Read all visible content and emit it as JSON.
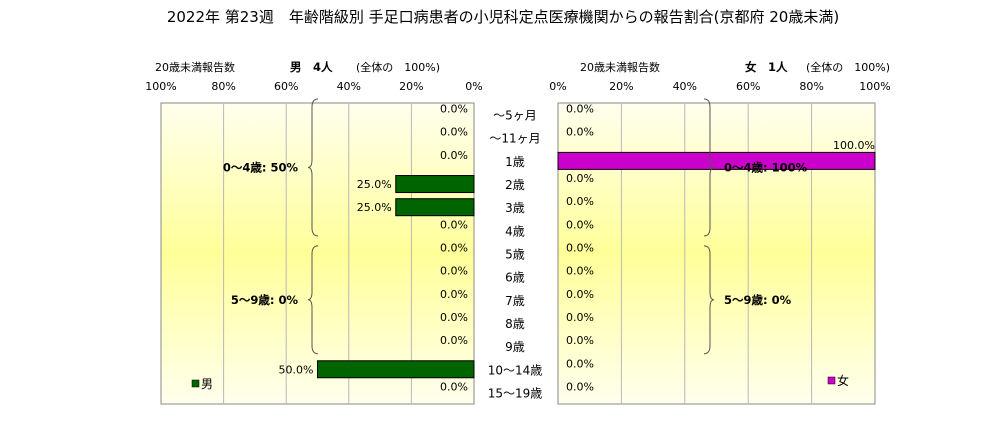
{
  "title": "2022年 第23週　年齢階級別 手足口病患者の小児科定点医療機関からの報告割合(京都府 20歳未満)",
  "age_labels": [
    "～5ヶ月",
    "～11ヶ月",
    "1歳",
    "2歳",
    "3歳",
    "4歳",
    "5歳",
    "6歳",
    "7歳",
    "8歳",
    "9歳",
    "10～14歳",
    "15～19歳"
  ],
  "axis_ticks": [
    "100%",
    "80%",
    "60%",
    "40%",
    "20%",
    "0%"
  ],
  "axis_ticks_right": [
    "0%",
    "20%",
    "40%",
    "60%",
    "80%",
    "100%"
  ],
  "colors": {
    "male_bar": "#006400",
    "female_bar": "#cc00cc",
    "plot_fill_edge": "#ffffee",
    "plot_fill_center": "#ffff99"
  },
  "chart_data": [
    {
      "type": "bar",
      "orientation": "horizontal",
      "direction": "right-to-left",
      "header_left": "20歳未満報告数",
      "header_series": "男　4人",
      "header_total": "(全体の　100%)",
      "categories": [
        "～5ヶ月",
        "～11ヶ月",
        "1歳",
        "2歳",
        "3歳",
        "4歳",
        "5歳",
        "6歳",
        "7歳",
        "8歳",
        "9歳",
        "10～14歳",
        "15～19歳"
      ],
      "series": [
        {
          "name": "男",
          "values": [
            0.0,
            0.0,
            0.0,
            25.0,
            25.0,
            0.0,
            0.0,
            0.0,
            0.0,
            0.0,
            0.0,
            50.0,
            0.0
          ]
        }
      ],
      "value_labels": [
        "0.0%",
        "0.0%",
        "0.0%",
        "25.0%",
        "25.0%",
        "0.0%",
        "0.0%",
        "0.0%",
        "0.0%",
        "0.0%",
        "0.0%",
        "50.0%",
        "0.0%"
      ],
      "xlim": [
        0,
        100
      ],
      "group_labels": [
        "0～4歳: 50%",
        "5～9歳: 0%"
      ],
      "legend": "男",
      "legend_position": "bottom-left"
    },
    {
      "type": "bar",
      "orientation": "horizontal",
      "direction": "left-to-right",
      "header_left": "20歳未満報告数",
      "header_series": "女　1人",
      "header_total": "(全体の　100%)",
      "categories": [
        "～5ヶ月",
        "～11ヶ月",
        "1歳",
        "2歳",
        "3歳",
        "4歳",
        "5歳",
        "6歳",
        "7歳",
        "8歳",
        "9歳",
        "10～14歳",
        "15～19歳"
      ],
      "series": [
        {
          "name": "女",
          "values": [
            0.0,
            0.0,
            100.0,
            0.0,
            0.0,
            0.0,
            0.0,
            0.0,
            0.0,
            0.0,
            0.0,
            0.0,
            0.0
          ]
        }
      ],
      "value_labels": [
        "0.0%",
        "0.0%",
        "100.0%",
        "0.0%",
        "0.0%",
        "0.0%",
        "0.0%",
        "0.0%",
        "0.0%",
        "0.0%",
        "0.0%",
        "0.0%",
        "0.0%"
      ],
      "xlim": [
        0,
        100
      ],
      "group_labels": [
        "0～4歳: 100%",
        "5～9歳: 0%"
      ],
      "legend": "女",
      "legend_position": "bottom-right"
    }
  ]
}
